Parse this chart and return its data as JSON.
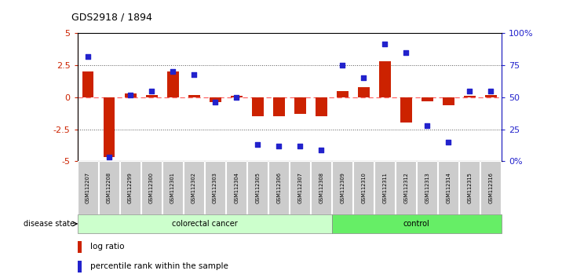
{
  "title": "GDS2918 / 1894",
  "samples": [
    "GSM112207",
    "GSM112208",
    "GSM112299",
    "GSM112300",
    "GSM112301",
    "GSM112302",
    "GSM112303",
    "GSM112304",
    "GSM112305",
    "GSM112306",
    "GSM112307",
    "GSM112308",
    "GSM112309",
    "GSM112310",
    "GSM112311",
    "GSM112312",
    "GSM112313",
    "GSM112314",
    "GSM112315",
    "GSM112316"
  ],
  "log_ratio": [
    2.0,
    -4.7,
    0.3,
    0.2,
    2.0,
    0.2,
    -0.4,
    0.1,
    -1.5,
    -1.5,
    -1.3,
    -1.5,
    0.5,
    0.8,
    2.8,
    -2.0,
    -0.3,
    -0.6,
    0.1,
    0.2
  ],
  "percentile": [
    82,
    3,
    52,
    55,
    70,
    68,
    46,
    50,
    13,
    12,
    12,
    9,
    75,
    65,
    92,
    85,
    28,
    15,
    55,
    55
  ],
  "group": [
    "colorectal cancer",
    "colorectal cancer",
    "colorectal cancer",
    "colorectal cancer",
    "colorectal cancer",
    "colorectal cancer",
    "colorectal cancer",
    "colorectal cancer",
    "colorectal cancer",
    "colorectal cancer",
    "colorectal cancer",
    "colorectal cancer",
    "control",
    "control",
    "control",
    "control",
    "control",
    "control",
    "control",
    "control"
  ],
  "ylim_left": [
    -5,
    5
  ],
  "ylim_right": [
    0,
    100
  ],
  "yticks_left": [
    -5,
    -2.5,
    0,
    2.5,
    5
  ],
  "yticks_right": [
    0,
    25,
    50,
    75,
    100
  ],
  "ytick_labels_right": [
    "0%",
    "25",
    "50",
    "75",
    "100%"
  ],
  "bar_color": "#cc2200",
  "dot_color": "#2222cc",
  "zero_line_color": "#ff6666",
  "dotted_line_color": "#555555",
  "cancer_bg": "#ccffcc",
  "control_bg": "#66ee66",
  "label_area_bg": "#cccccc",
  "group_label_cancer": "colorectal cancer",
  "group_label_control": "control",
  "legend_log": "log ratio",
  "legend_pct": "percentile rank within the sample",
  "n_cancer": 12,
  "n_control": 8
}
